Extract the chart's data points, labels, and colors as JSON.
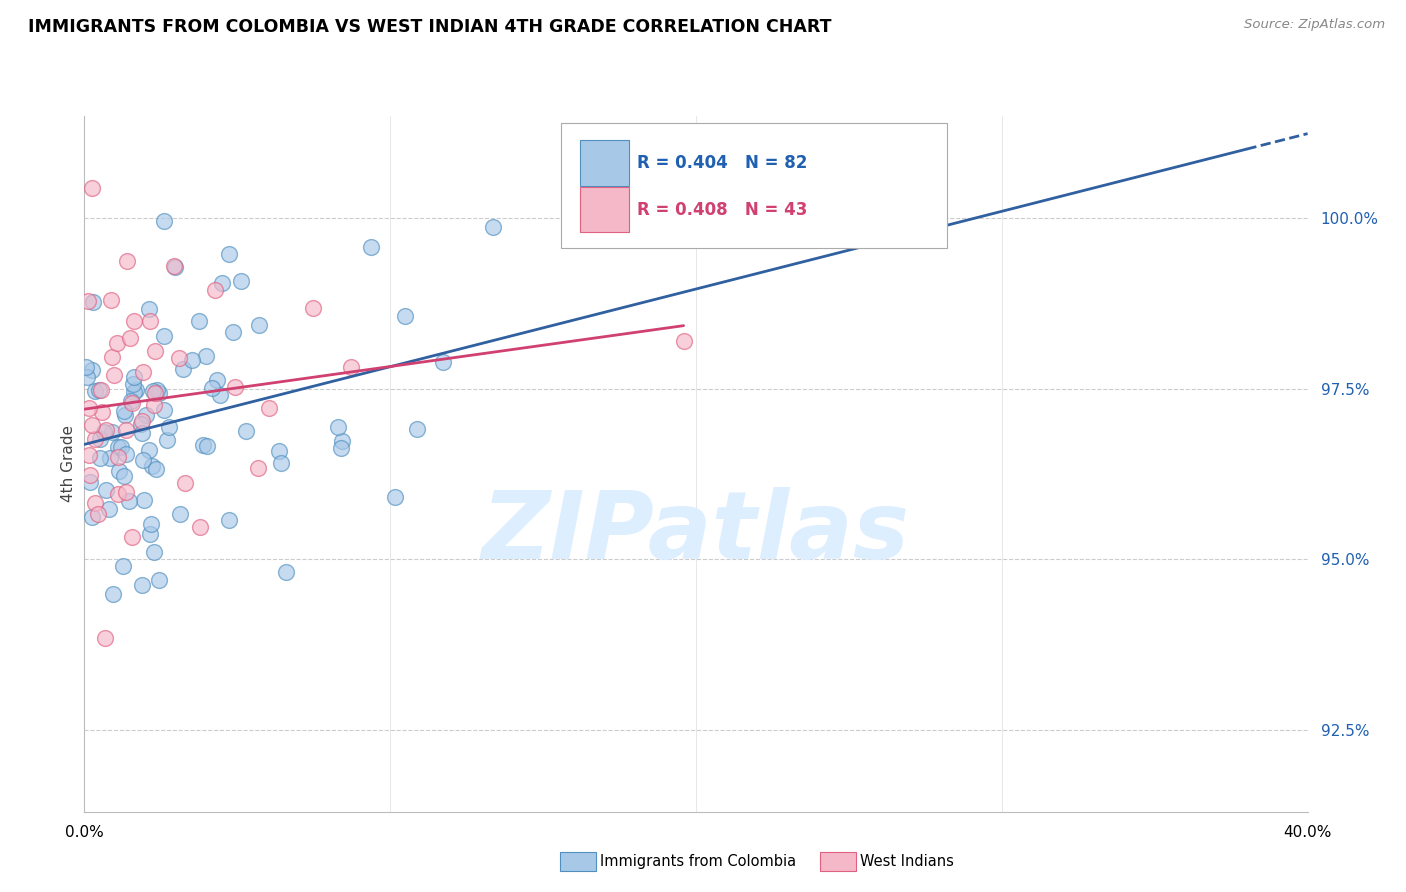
{
  "title": "IMMIGRANTS FROM COLOMBIA VS WEST INDIAN 4TH GRADE CORRELATION CHART",
  "source": "Source: ZipAtlas.com",
  "ylabel": "4th Grade",
  "yticks": [
    92.5,
    95.0,
    97.5,
    100.0
  ],
  "ytick_labels": [
    "92.5%",
    "95.0%",
    "97.5%",
    "100.0%"
  ],
  "xlim": [
    0.0,
    40.0
  ],
  "ylim": [
    91.3,
    101.5
  ],
  "blue_color": "#a8c8e8",
  "pink_color": "#f4b8c8",
  "blue_edge_color": "#5090c0",
  "pink_edge_color": "#e06080",
  "blue_line_color": "#3060a0",
  "pink_line_color": "#d04070",
  "watermark": "ZIPatlas",
  "watermark_color": "#ddeeff",
  "legend_r1": "R = 0.404",
  "legend_n1": "N = 82",
  "legend_r2": "R = 0.408",
  "legend_n2": "N = 43",
  "blue_text_color": "#2060b0",
  "pink_text_color": "#d04070"
}
